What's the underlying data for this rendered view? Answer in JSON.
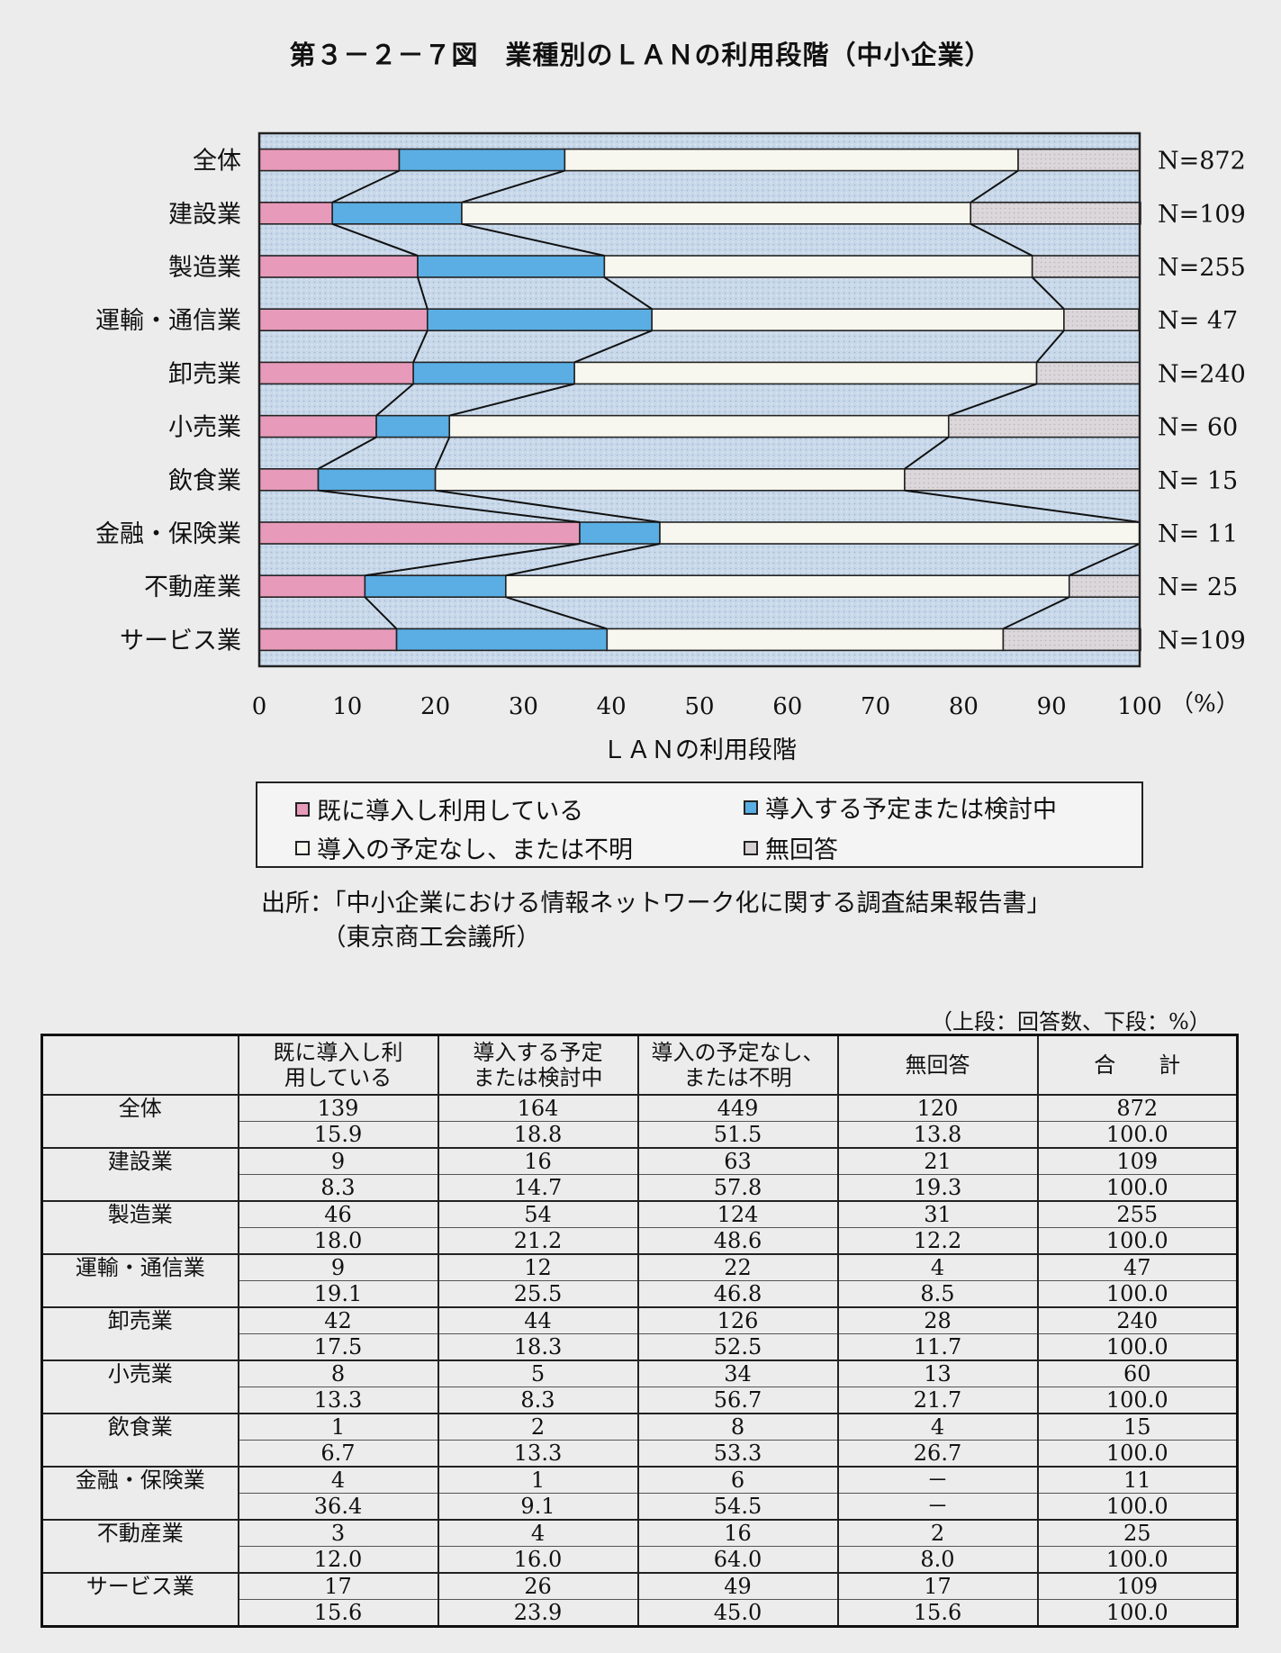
{
  "title": "第３－２－７図　業種別のＬＡＮの利用段階（中小企業）",
  "chart_data": {
    "type": "bar",
    "orientation": "horizontal",
    "stacked": true,
    "xlabel": "ＬＡＮの利用段階",
    "x_unit": "（%）",
    "xlim": [
      0,
      100
    ],
    "x_ticks": [
      "0",
      "10",
      "20",
      "30",
      "40",
      "50",
      "60",
      "70",
      "80",
      "90",
      "100"
    ],
    "categories": [
      "全体",
      "建設業",
      "製造業",
      "運輸・通信業",
      "卸売業",
      "小売業",
      "飲食業",
      "金融・保険業",
      "不動産業",
      "サービス業"
    ],
    "n_labels": [
      "N=872",
      "N=109",
      "N=255",
      "N= 47",
      "N=240",
      "N= 60",
      "N= 15",
      "N= 11",
      "N= 25",
      "N=109"
    ],
    "series": [
      {
        "name": "既に導入し利用している",
        "color": "#e79ab9",
        "values": [
          15.9,
          8.3,
          18.0,
          19.1,
          17.5,
          13.3,
          6.7,
          36.4,
          12.0,
          15.6
        ]
      },
      {
        "name": "導入する予定または検討中",
        "color": "#5aaee3",
        "values": [
          18.8,
          14.7,
          21.2,
          25.5,
          18.3,
          8.3,
          13.3,
          9.1,
          16.0,
          23.9
        ]
      },
      {
        "name": "導入の予定なし、または不明",
        "color": "#f7f7ef",
        "values": [
          51.5,
          57.8,
          48.6,
          46.8,
          52.5,
          56.7,
          53.3,
          54.5,
          64.0,
          45.0
        ]
      },
      {
        "name": "無回答",
        "color": "#d6d0d4",
        "values": [
          13.8,
          19.3,
          12.2,
          8.5,
          11.7,
          21.7,
          26.7,
          0,
          8.0,
          15.6
        ]
      }
    ],
    "legend_position": "bottom",
    "plot_background": "#c9d9ea"
  },
  "source_lines": [
    "出所：「中小企業における情報ネットワーク化に関する調査結果報告書」",
    "　　　（東京商工会議所）"
  ],
  "table": {
    "unit_note": "（上段：回答数、下段：%）",
    "headers": [
      "",
      [
        "既に導入し利",
        "用している"
      ],
      [
        "導入する予定",
        "または検討中"
      ],
      [
        "導入の予定なし、",
        "または不明"
      ],
      [
        "無回答"
      ],
      [
        "合　　計"
      ]
    ],
    "rows": [
      {
        "label": "全体",
        "counts": [
          "139",
          "164",
          "449",
          "120",
          "872"
        ],
        "pcts": [
          "15.9",
          "18.8",
          "51.5",
          "13.8",
          "100.0"
        ]
      },
      {
        "label": "建設業",
        "counts": [
          "9",
          "16",
          "63",
          "21",
          "109"
        ],
        "pcts": [
          "8.3",
          "14.7",
          "57.8",
          "19.3",
          "100.0"
        ]
      },
      {
        "label": "製造業",
        "counts": [
          "46",
          "54",
          "124",
          "31",
          "255"
        ],
        "pcts": [
          "18.0",
          "21.2",
          "48.6",
          "12.2",
          "100.0"
        ]
      },
      {
        "label": "運輸・通信業",
        "counts": [
          "9",
          "12",
          "22",
          "4",
          "47"
        ],
        "pcts": [
          "19.1",
          "25.5",
          "46.8",
          "8.5",
          "100.0"
        ]
      },
      {
        "label": "卸売業",
        "counts": [
          "42",
          "44",
          "126",
          "28",
          "240"
        ],
        "pcts": [
          "17.5",
          "18.3",
          "52.5",
          "11.7",
          "100.0"
        ]
      },
      {
        "label": "小売業",
        "counts": [
          "8",
          "5",
          "34",
          "13",
          "60"
        ],
        "pcts": [
          "13.3",
          "8.3",
          "56.7",
          "21.7",
          "100.0"
        ]
      },
      {
        "label": "飲食業",
        "counts": [
          "1",
          "2",
          "8",
          "4",
          "15"
        ],
        "pcts": [
          "6.7",
          "13.3",
          "53.3",
          "26.7",
          "100.0"
        ]
      },
      {
        "label": "金融・保険業",
        "counts": [
          "4",
          "1",
          "6",
          "－",
          "11"
        ],
        "pcts": [
          "36.4",
          "9.1",
          "54.5",
          "－",
          "100.0"
        ]
      },
      {
        "label": "不動産業",
        "counts": [
          "3",
          "4",
          "16",
          "2",
          "25"
        ],
        "pcts": [
          "12.0",
          "16.0",
          "64.0",
          "8.0",
          "100.0"
        ]
      },
      {
        "label": "サービス業",
        "counts": [
          "17",
          "26",
          "49",
          "17",
          "109"
        ],
        "pcts": [
          "15.6",
          "23.9",
          "45.0",
          "15.6",
          "100.0"
        ]
      }
    ]
  }
}
